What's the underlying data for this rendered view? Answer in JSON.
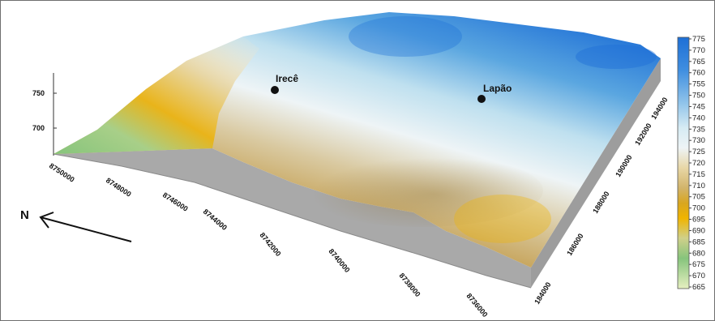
{
  "map": {
    "towns": [
      {
        "name": "Irecê"
      },
      {
        "name": "Lapão"
      }
    ],
    "north_label": "N",
    "z_axis_labels": [
      "750",
      "700"
    ],
    "northing_labels": [
      "8750000",
      "8748000",
      "8746000",
      "8744000",
      "8742000",
      "8740000",
      "8738000",
      "8736000"
    ],
    "easting_labels": [
      "184000",
      "186000",
      "188000",
      "190000",
      "192000",
      "194000"
    ],
    "colorbar": {
      "labels": [
        "775",
        "770",
        "765",
        "760",
        "755",
        "750",
        "745",
        "740",
        "735",
        "730",
        "725",
        "720",
        "715",
        "710",
        "705",
        "700",
        "695",
        "690",
        "685",
        "680",
        "675",
        "670",
        "665"
      ],
      "colors": {
        "high": "#1e6fd6",
        "upper": "#8fc3ea",
        "mid": "#eef4f6",
        "tan": "#e8d7a6",
        "gold": "#f0b400",
        "low_green": "#86c47c",
        "lowest": "#e6efc0"
      }
    }
  }
}
